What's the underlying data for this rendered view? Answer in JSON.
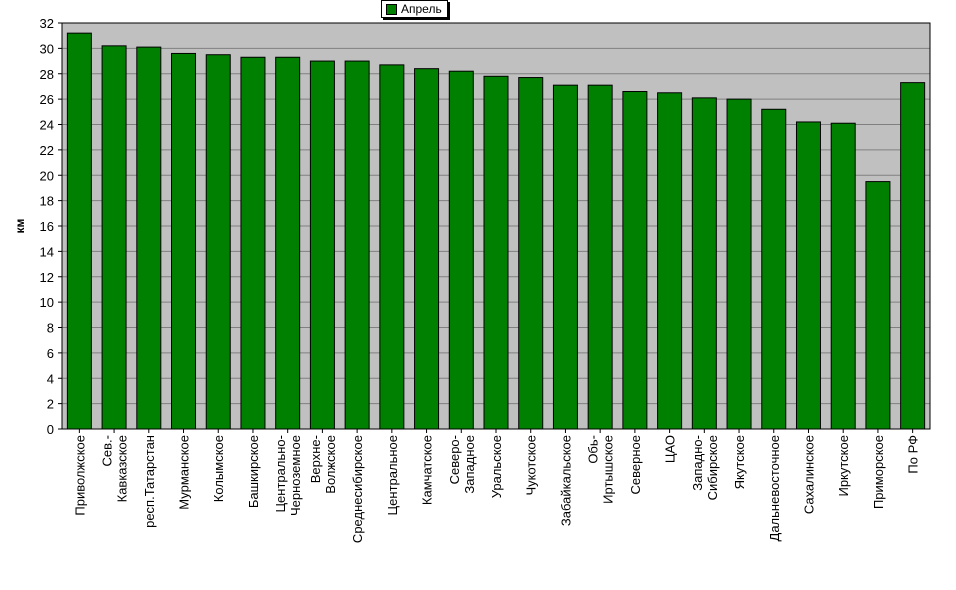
{
  "chart_data": {
    "type": "bar",
    "legend": {
      "label": "Апрель",
      "placement": "top-center"
    },
    "ylabel": "км",
    "xlabel": "",
    "ylim": [
      0,
      32
    ],
    "yticks": [
      0,
      2,
      4,
      6,
      8,
      10,
      12,
      14,
      16,
      18,
      20,
      22,
      24,
      26,
      28,
      30,
      32
    ],
    "grid": true,
    "colors": {
      "bar": "#008000",
      "plot_bg": "#c0c0c0",
      "grid": "#808080"
    },
    "categories": [
      [
        "Приволжское"
      ],
      [
        "Сев.-",
        "Кавказское"
      ],
      [
        "респ.Татарстан"
      ],
      [
        "Мурманское"
      ],
      [
        "Колымское"
      ],
      [
        "Башкирское"
      ],
      [
        "Центрально-",
        "Черноземное"
      ],
      [
        "Верхне-",
        "Волжское"
      ],
      [
        "Среднесибирское"
      ],
      [
        "Центральное"
      ],
      [
        "Камчатское"
      ],
      [
        "Северо-",
        "Западное"
      ],
      [
        "Уральское"
      ],
      [
        "Чукотское"
      ],
      [
        "Забайкальское"
      ],
      [
        "Обь-",
        "Иртышское"
      ],
      [
        "Северное"
      ],
      [
        "ЦАО"
      ],
      [
        "Западно-",
        "Сибирское"
      ],
      [
        "Якутское"
      ],
      [
        "Дальневосточное"
      ],
      [
        "Сахалинское"
      ],
      [
        "Иркутское"
      ],
      [
        "Приморское"
      ],
      [
        "По РФ"
      ]
    ],
    "series": [
      {
        "name": "Апрель",
        "values": [
          31.2,
          30.2,
          30.1,
          29.6,
          29.5,
          29.3,
          29.3,
          29.0,
          29.0,
          28.7,
          28.4,
          28.2,
          27.8,
          27.7,
          27.1,
          27.1,
          26.6,
          26.5,
          26.1,
          26.0,
          25.2,
          24.2,
          24.1,
          19.5,
          27.3
        ]
      }
    ]
  }
}
